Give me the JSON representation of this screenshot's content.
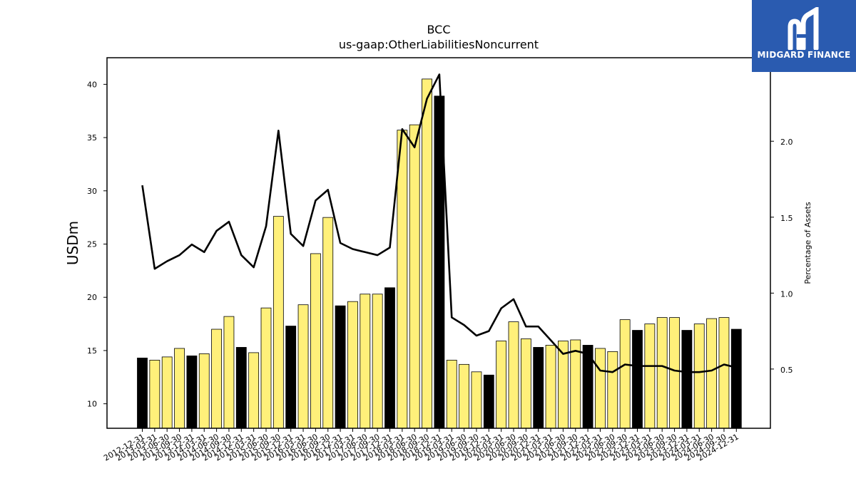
{
  "chart_data": {
    "type": "bar",
    "title": "BCC",
    "subtitle": "us-gaap:OtherLiabilitiesNoncurrent",
    "ylabel": "USDm",
    "y2label": "Percentage of Assets",
    "ylim": [
      7.7,
      42.5
    ],
    "y2lim": [
      0.11,
      2.55
    ],
    "yticks": [
      10,
      15,
      20,
      25,
      30,
      35,
      40
    ],
    "y2ticks": [
      0.5,
      1.0,
      1.5,
      2.0
    ],
    "y2tick_labels": [
      "0.5",
      "1.0",
      "1.5",
      "2.0"
    ],
    "highlight_color": "#000000",
    "bar_color": "#fff07a",
    "line_color": "#000000",
    "categories": [
      "2012-12-31",
      "2013-03-31",
      "2013-06-30",
      "2013-09-30",
      "2013-12-31",
      "2014-03-31",
      "2014-06-30",
      "2014-09-30",
      "2014-12-31",
      "2015-03-31",
      "2015-06-30",
      "2015-09-30",
      "2015-12-31",
      "2016-03-31",
      "2016-06-30",
      "2016-09-30",
      "2016-12-31",
      "2017-03-31",
      "2017-06-30",
      "2017-09-30",
      "2017-12-31",
      "2018-03-31",
      "2018-06-30",
      "2018-09-30",
      "2018-12-31",
      "2019-03-31",
      "2019-06-30",
      "2019-09-30",
      "2019-12-31",
      "2020-03-31",
      "2020-06-30",
      "2020-09-30",
      "2020-12-31",
      "2021-03-31",
      "2021-06-30",
      "2021-09-30",
      "2021-12-31",
      "2022-03-31",
      "2022-06-30",
      "2022-09-30",
      "2022-12-31",
      "2023-03-31",
      "2023-06-30",
      "2023-09-30",
      "2023-12-31",
      "2024-03-31",
      "2024-06-30",
      "2024-09-30",
      "2024-12-31"
    ],
    "series": [
      {
        "type": "bar",
        "axis": "left",
        "values": [
          14.3,
          14.1,
          14.4,
          15.2,
          14.5,
          14.7,
          17.0,
          18.2,
          15.3,
          14.8,
          19.0,
          27.6,
          17.3,
          19.3,
          24.1,
          27.5,
          19.2,
          19.6,
          20.3,
          20.3,
          20.9,
          35.7,
          36.2,
          40.5,
          38.9,
          14.1,
          13.7,
          13.0,
          12.7,
          15.9,
          17.7,
          16.1,
          15.3,
          15.5,
          15.9,
          16.0,
          15.5,
          15.2,
          14.9,
          17.9,
          16.9,
          17.5,
          18.1,
          18.1,
          16.9,
          17.5,
          18.0,
          18.1,
          17.0
        ],
        "highlight": [
          true,
          false,
          false,
          false,
          true,
          false,
          false,
          false,
          true,
          false,
          false,
          false,
          true,
          false,
          false,
          false,
          true,
          false,
          false,
          false,
          true,
          false,
          false,
          false,
          true,
          false,
          false,
          false,
          true,
          false,
          false,
          false,
          true,
          false,
          false,
          false,
          true,
          false,
          false,
          false,
          true,
          false,
          false,
          false,
          true,
          false,
          false,
          false,
          true
        ]
      },
      {
        "type": "line",
        "axis": "right",
        "values": [
          1.71,
          1.16,
          1.21,
          1.25,
          1.32,
          1.27,
          1.41,
          1.47,
          1.25,
          1.17,
          1.44,
          2.07,
          1.39,
          1.31,
          1.61,
          1.68,
          1.33,
          1.29,
          1.27,
          1.25,
          1.3,
          2.08,
          1.96,
          2.28,
          2.44,
          0.84,
          0.79,
          0.72,
          0.75,
          0.9,
          0.96,
          0.78,
          0.78,
          0.69,
          0.6,
          0.62,
          0.6,
          0.49,
          0.48,
          0.53,
          0.52,
          0.52,
          0.52,
          0.49,
          0.48,
          0.48,
          0.49,
          0.53,
          0.51
        ]
      }
    ]
  },
  "logo": {
    "text": "MIDGARD FINANCE",
    "icon": "midgard-logo-icon"
  }
}
